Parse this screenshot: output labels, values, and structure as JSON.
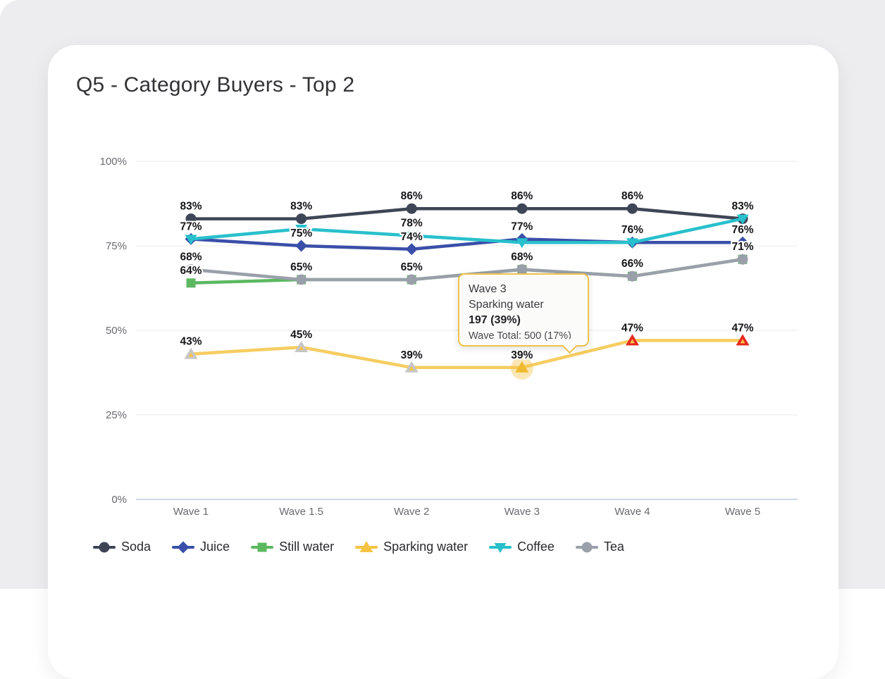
{
  "card": {
    "title": "Q5 - Category Buyers - Top 2"
  },
  "chart_data": {
    "type": "line",
    "title": "Q5 - Category Buyers - Top 2",
    "categories": [
      "Wave 1",
      "Wave 1.5",
      "Wave 2",
      "Wave 3",
      "Wave 4",
      "Wave 5"
    ],
    "xlabel": "",
    "ylabel": "",
    "ylim": [
      0,
      100
    ],
    "grid": true,
    "legend_position": "bottom",
    "y_ticks": {
      "labels": [
        "0%",
        "25%",
        "50%",
        "75%",
        "100%"
      ],
      "values": [
        0,
        25,
        50,
        75,
        100
      ]
    },
    "series": [
      {
        "name": "Soda",
        "color": "#3e4556",
        "marker": "circle",
        "values": [
          83,
          83,
          86,
          86,
          86,
          83
        ],
        "labels": [
          "83%",
          "83%",
          "86%",
          "86%",
          "86%",
          "83%"
        ]
      },
      {
        "name": "Juice",
        "color": "#3a4fa9",
        "marker": "diamond",
        "values": [
          77,
          75,
          74,
          77,
          76,
          76
        ],
        "labels": [
          "77%",
          "75%",
          "74%",
          "77%",
          "76%",
          "76%"
        ]
      },
      {
        "name": "Still water",
        "color": "#5cb860",
        "marker": "square",
        "values": [
          64,
          65,
          65,
          68,
          66,
          71
        ],
        "labels": [
          "64%",
          null,
          null,
          null,
          null,
          null
        ]
      },
      {
        "name": "Sparking water",
        "color": "#f5c445",
        "marker": "triangle-up",
        "values": [
          43,
          45,
          39,
          39,
          47,
          47
        ],
        "labels": [
          "43%",
          "45%",
          "39%",
          "39%",
          "47%",
          "47%"
        ],
        "point_styles": [
          "gray",
          "gray",
          "gray",
          "hover",
          "red",
          "red"
        ]
      },
      {
        "name": "Coffee",
        "color": "#28c0cc",
        "marker": "triangle-down",
        "values": [
          77,
          80,
          78,
          76,
          76,
          83
        ],
        "labels": [
          null,
          null,
          "78%",
          null,
          null,
          null
        ]
      },
      {
        "name": "Tea",
        "color": "#9aa0a9",
        "marker": "circle",
        "values": [
          68,
          65,
          65,
          68,
          66,
          71
        ],
        "labels": [
          "68%",
          "65%",
          "65%",
          "68%",
          "66%",
          "71%"
        ]
      }
    ],
    "point_style_colors": {
      "gray": "#c6c6c8",
      "red": "#e6281e",
      "hover": "#efb92f",
      "inner": "#f5c445"
    },
    "axis_colors": {
      "grid": "#ebebeb",
      "zero_line": "#ccd7ea",
      "tick_text": "#6a6a70",
      "label_text": "#161619"
    }
  },
  "tooltip": {
    "wave": "Wave 3",
    "series": "Sparking water",
    "value": "197 (39%)",
    "total": "Wave Total: 500 (17%)",
    "border_color": "#f0c24c"
  }
}
